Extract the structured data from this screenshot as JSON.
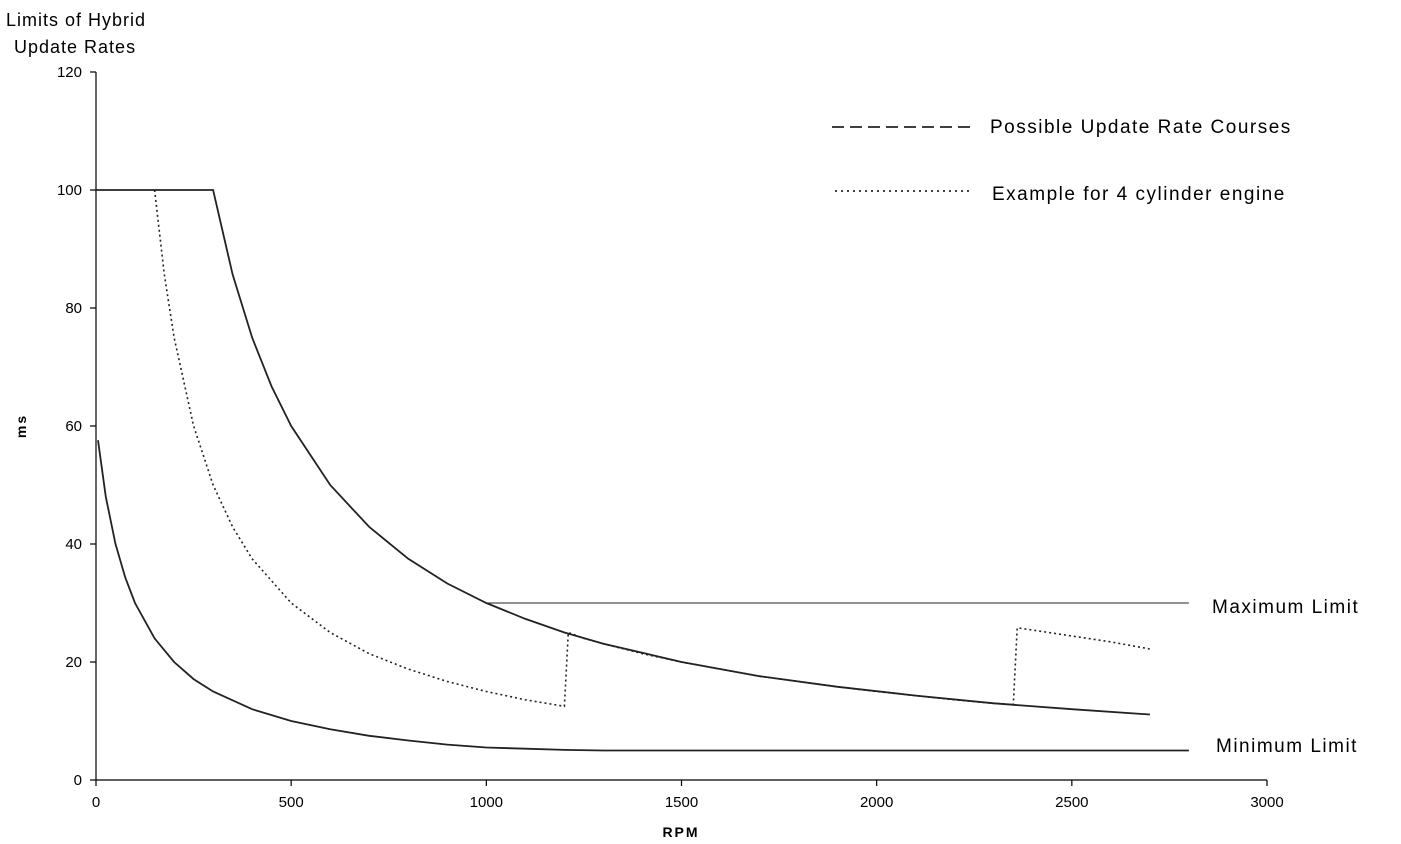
{
  "chart_data": {
    "type": "line",
    "title": [
      "Limits of Hybrid",
      "Update Rates"
    ],
    "xlabel": "RPM",
    "ylabel": "ms",
    "xlim": [
      0,
      3000
    ],
    "ylim": [
      0,
      120
    ],
    "x_ticks": [
      0,
      500,
      1000,
      1500,
      2000,
      2500,
      3000
    ],
    "y_ticks": [
      0,
      20,
      40,
      60,
      80,
      100,
      120
    ],
    "grid": false,
    "legend_position": "top-right",
    "legend": [
      {
        "label": "Possible Update Rate Courses",
        "style": "dashed"
      },
      {
        "label": "Example for 4 cylinder engine",
        "style": "dotted"
      }
    ],
    "annotations": [
      {
        "text": "Maximum Limit",
        "x": 3000,
        "y": 30
      },
      {
        "text": "Minimum Limit",
        "x": 3000,
        "y": 5
      }
    ],
    "series": [
      {
        "style": "solid",
        "x": [
          0,
          300,
          300,
          350,
          400,
          450,
          500,
          600,
          700,
          800,
          900,
          1000,
          1100,
          1200,
          1300,
          1500,
          1700,
          1900,
          2100,
          2300,
          2500,
          2700
        ],
        "y": [
          100,
          100,
          100,
          85.7,
          75,
          66.7,
          60,
          50,
          42.9,
          37.5,
          33.3,
          30,
          27.3,
          25,
          23.1,
          20,
          17.6,
          15.8,
          14.3,
          13,
          12,
          11.1
        ]
      },
      {
        "style": "dotted",
        "x": [
          150,
          150,
          175,
          200,
          250,
          300,
          350,
          400,
          500,
          600,
          700,
          800,
          900,
          1000,
          1100,
          1200,
          1200,
          1210,
          1250,
          1300,
          1400,
          1500,
          1600,
          1700,
          1800,
          1900,
          2000,
          2100,
          2200,
          2300,
          2350,
          2350,
          2360,
          2400,
          2500,
          2600,
          2700
        ],
        "y": [
          100,
          100,
          85.7,
          75,
          60,
          50,
          42.9,
          37.5,
          30,
          25,
          21.4,
          18.8,
          16.7,
          15,
          13.6,
          12.5,
          12.5,
          25,
          24,
          23.1,
          21.4,
          20,
          18.8,
          17.6,
          16.7,
          15.8,
          15,
          14.3,
          13.6,
          13,
          12.8,
          12.8,
          25.8,
          25.4,
          24.4,
          23.4,
          22.2
        ]
      },
      {
        "style": "solid",
        "x": [
          5,
          25,
          50,
          75,
          100,
          150,
          200,
          250,
          300,
          400,
          500,
          600,
          700,
          800,
          900,
          1000,
          1100,
          1200,
          1300,
          1350,
          1500,
          2000,
          2500,
          2800
        ],
        "y": [
          57.6,
          48,
          40,
          34.3,
          30,
          24,
          20,
          17.1,
          15,
          12,
          10,
          8.6,
          7.5,
          6.7,
          6,
          5.5,
          5.3,
          5.1,
          5,
          5,
          5,
          5,
          5,
          5
        ]
      },
      {
        "style": "solid",
        "x": [
          1000,
          2800
        ],
        "y": [
          30,
          30
        ]
      }
    ]
  }
}
